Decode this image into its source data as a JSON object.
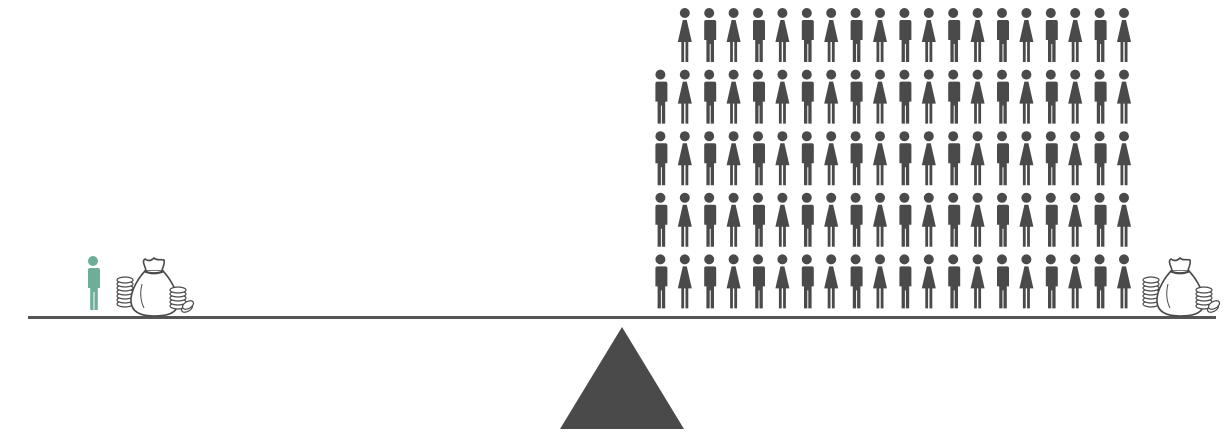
{
  "colors": {
    "accent": "#6fae96",
    "figure": "#4a4a4a",
    "beam": "#555555",
    "fulcrum": "#4a4a4a",
    "bag_fill": "#ffffff",
    "bag_stroke": "#4a4a4a"
  },
  "left_side": {
    "figure_icon": "person-icon",
    "figure_count": 1,
    "wealth_icon": "money-bag-icon"
  },
  "right_side": {
    "figure_icon": "person-icon",
    "figure_count": 99,
    "rows": [
      19,
      20,
      20,
      20,
      20
    ],
    "wealth_icon": "money-bag-icon"
  },
  "fulcrum_icon": "triangle-fulcrum-icon"
}
